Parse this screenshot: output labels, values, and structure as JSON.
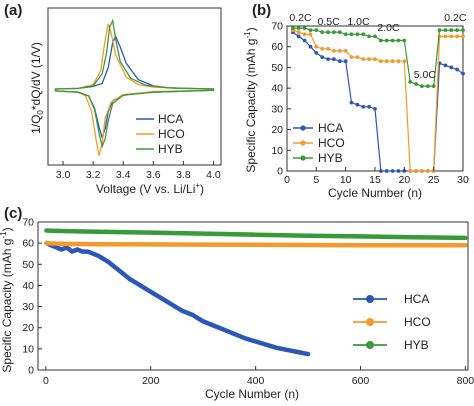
{
  "figure": {
    "background": "#ffffff"
  },
  "colors": {
    "HCA": "#2b57b8",
    "HCO": "#f39a2b",
    "HYB": "#3a9a3a"
  },
  "chart_data": [
    {
      "panel": "(a)",
      "type": "line",
      "xlabel": "Voltage (V vs. Li/Li",
      "xlabel_sup": "+",
      "xlabel_end": ")",
      "ylabel": "1/Q",
      "ylabel_sub": "0",
      "ylabel_end": "*dQ/dV (1/V)",
      "xlim": [
        2.9,
        4.05
      ],
      "ylim": [
        -1.2,
        1.3
      ],
      "xticks": [
        "3.0",
        "3.2",
        "3.4",
        "3.6",
        "3.8",
        "4.0"
      ],
      "yticks": [],
      "legend": {
        "placement": "lower-right",
        "entries": [
          "HCA",
          "HCO",
          "HYB"
        ]
      },
      "series": [
        {
          "name": "HCA",
          "charge": [
            [
              2.95,
              0.01
            ],
            [
              3.1,
              0.02
            ],
            [
              3.2,
              0.05
            ],
            [
              3.26,
              0.1
            ],
            [
              3.3,
              0.35
            ],
            [
              3.33,
              0.75
            ],
            [
              3.35,
              0.85
            ],
            [
              3.38,
              0.68
            ],
            [
              3.42,
              0.42
            ],
            [
              3.5,
              0.16
            ],
            [
              3.6,
              0.06
            ],
            [
              3.7,
              0.03
            ],
            [
              3.8,
              0.02
            ],
            [
              4.0,
              0.01
            ]
          ],
          "discharge": [
            [
              4.0,
              -0.01
            ],
            [
              3.6,
              -0.04
            ],
            [
              3.4,
              -0.08
            ],
            [
              3.33,
              -0.18
            ],
            [
              3.3,
              -0.35
            ],
            [
              3.28,
              -0.62
            ],
            [
              3.26,
              -0.76
            ],
            [
              3.24,
              -0.6
            ],
            [
              3.21,
              -0.3
            ],
            [
              3.17,
              -0.1
            ],
            [
              3.1,
              -0.04
            ],
            [
              2.95,
              -0.02
            ]
          ]
        },
        {
          "name": "HCO",
          "charge": [
            [
              2.95,
              0.01
            ],
            [
              3.1,
              0.02
            ],
            [
              3.2,
              0.08
            ],
            [
              3.25,
              0.3
            ],
            [
              3.28,
              0.8
            ],
            [
              3.3,
              1.05
            ],
            [
              3.32,
              0.9
            ],
            [
              3.35,
              0.55
            ],
            [
              3.42,
              0.2
            ],
            [
              3.5,
              0.08
            ],
            [
              3.6,
              0.04
            ],
            [
              3.8,
              0.02
            ],
            [
              4.0,
              0.01
            ]
          ],
          "discharge": [
            [
              4.0,
              -0.01
            ],
            [
              3.6,
              -0.03
            ],
            [
              3.4,
              -0.08
            ],
            [
              3.32,
              -0.2
            ],
            [
              3.28,
              -0.45
            ],
            [
              3.26,
              -0.85
            ],
            [
              3.24,
              -1.05
            ],
            [
              3.22,
              -0.8
            ],
            [
              3.19,
              -0.35
            ],
            [
              3.15,
              -0.1
            ],
            [
              3.1,
              -0.04
            ],
            [
              2.95,
              -0.02
            ]
          ]
        },
        {
          "name": "HYB",
          "charge": [
            [
              2.95,
              0.01
            ],
            [
              3.1,
              0.02
            ],
            [
              3.2,
              0.06
            ],
            [
              3.26,
              0.25
            ],
            [
              3.29,
              0.6
            ],
            [
              3.31,
              1.0
            ],
            [
              3.33,
              1.1
            ],
            [
              3.35,
              0.8
            ],
            [
              3.38,
              0.45
            ],
            [
              3.45,
              0.18
            ],
            [
              3.55,
              0.07
            ],
            [
              3.7,
              0.03
            ],
            [
              4.0,
              0.01
            ]
          ],
          "discharge": [
            [
              4.0,
              -0.01
            ],
            [
              3.6,
              -0.04
            ],
            [
              3.4,
              -0.09
            ],
            [
              3.33,
              -0.22
            ],
            [
              3.3,
              -0.5
            ],
            [
              3.28,
              -0.78
            ],
            [
              3.26,
              -0.9
            ],
            [
              3.24,
              -0.7
            ],
            [
              3.21,
              -0.32
            ],
            [
              3.17,
              -0.1
            ],
            [
              3.1,
              -0.04
            ],
            [
              2.95,
              -0.02
            ]
          ]
        }
      ]
    },
    {
      "panel": "(b)",
      "type": "line",
      "xlabel": "Cycle Number (n)",
      "ylabel": "Specific Capacity (mAh g",
      "ylabel_sup": "-1",
      "ylabel_end": ")",
      "xlim": [
        0,
        30
      ],
      "ylim": [
        0,
        70
      ],
      "xticks": [
        "0",
        "5",
        "10",
        "15",
        "20",
        "25",
        "30"
      ],
      "yticks": [
        "0",
        "10",
        "20",
        "30",
        "40",
        "50",
        "60",
        "70"
      ],
      "rate_labels": [
        {
          "text": "0.2C",
          "x": 0.4,
          "y": 72.5
        },
        {
          "text": "0.5C",
          "x": 5.2,
          "y": 70.5
        },
        {
          "text": "1.0C",
          "x": 10.3,
          "y": 70.5
        },
        {
          "text": "2.0C",
          "x": 15.4,
          "y": 67.5
        },
        {
          "text": "5.0C",
          "x": 21.6,
          "y": 45
        },
        {
          "text": "0.2C",
          "x": 26.8,
          "y": 72.5
        }
      ],
      "legend": {
        "placement": "lower-left",
        "entries": [
          "HCA",
          "HCO",
          "HYB"
        ]
      },
      "series": [
        {
          "name": "HCA",
          "x": [
            1,
            2,
            3,
            4,
            5,
            6,
            7,
            8,
            9,
            10,
            11,
            12,
            13,
            14,
            15,
            16,
            17,
            18,
            19,
            20,
            21,
            22,
            23,
            24,
            25,
            26,
            27,
            28,
            29,
            30
          ],
          "values": [
            67,
            65,
            63,
            60,
            57,
            55,
            54,
            54,
            53,
            53,
            33,
            32,
            31,
            31,
            30,
            0,
            0,
            0,
            0,
            0,
            0,
            0,
            0,
            0,
            0,
            52,
            51,
            50,
            49,
            47
          ]
        },
        {
          "name": "HCO",
          "x": [
            1,
            2,
            3,
            4,
            5,
            6,
            7,
            8,
            9,
            10,
            11,
            12,
            13,
            14,
            15,
            16,
            17,
            18,
            19,
            20,
            21,
            22,
            23,
            24,
            25,
            26,
            27,
            28,
            29,
            30
          ],
          "values": [
            68,
            67,
            66,
            66,
            60,
            59,
            59,
            58,
            58,
            58,
            55,
            55,
            54,
            54,
            54,
            53,
            53,
            53,
            53,
            53,
            0,
            0,
            0,
            0,
            0,
            65,
            65,
            65,
            65,
            65
          ]
        },
        {
          "name": "HYB",
          "x": [
            1,
            2,
            3,
            4,
            5,
            6,
            7,
            8,
            9,
            10,
            11,
            12,
            13,
            14,
            15,
            16,
            17,
            18,
            19,
            20,
            21,
            22,
            23,
            24,
            25,
            26,
            27,
            28,
            29,
            30
          ],
          "values": [
            69,
            69,
            69,
            68,
            68,
            67,
            67,
            67,
            67,
            66,
            66,
            66,
            66,
            65,
            65,
            63,
            63,
            63,
            63,
            63,
            43,
            42,
            41,
            41,
            41,
            68,
            68,
            68,
            68,
            68
          ]
        }
      ]
    },
    {
      "panel": "(c)",
      "type": "line",
      "xlabel": "Cycle Number (n)",
      "ylabel": "Specific Capacity (mAh g",
      "ylabel_sup": "-1",
      "ylabel_end": ")",
      "xlim": [
        -15,
        805
      ],
      "ylim": [
        0,
        70
      ],
      "xticks": [
        "0",
        "200",
        "400",
        "600",
        "800"
      ],
      "yticks": [
        "0",
        "10",
        "20",
        "30",
        "40",
        "50",
        "60",
        "70"
      ],
      "legend": {
        "placement": "lower-right",
        "entries": [
          "HCA",
          "HCO",
          "HYB"
        ]
      },
      "series": [
        {
          "name": "HCA",
          "x": [
            1,
            10,
            20,
            30,
            40,
            50,
            60,
            70,
            80,
            90,
            100,
            120,
            140,
            160,
            180,
            200,
            220,
            240,
            260,
            280,
            300,
            320,
            340,
            360,
            380,
            400,
            420,
            440,
            460,
            480,
            500
          ],
          "values": [
            60,
            59,
            58,
            57,
            58,
            56,
            57,
            56,
            56,
            55,
            54,
            51,
            47,
            43,
            40,
            37,
            34,
            31,
            28,
            26,
            23,
            21,
            19,
            17,
            15,
            13.5,
            12,
            10.5,
            9.5,
            8.5,
            7.5
          ]
        },
        {
          "name": "HCO",
          "x": [
            1,
            20,
            50,
            100,
            200,
            300,
            400,
            500,
            600,
            700,
            800
          ],
          "values": [
            60,
            59.8,
            59.6,
            59.5,
            59.4,
            59.3,
            59.2,
            59.1,
            59,
            59,
            59
          ]
        },
        {
          "name": "HYB",
          "x": [
            1,
            20,
            50,
            100,
            200,
            300,
            400,
            500,
            600,
            700,
            800
          ],
          "values": [
            66,
            65.8,
            65.6,
            65.4,
            65,
            64.5,
            64,
            63.5,
            63.2,
            62.8,
            62.5
          ]
        }
      ]
    }
  ]
}
